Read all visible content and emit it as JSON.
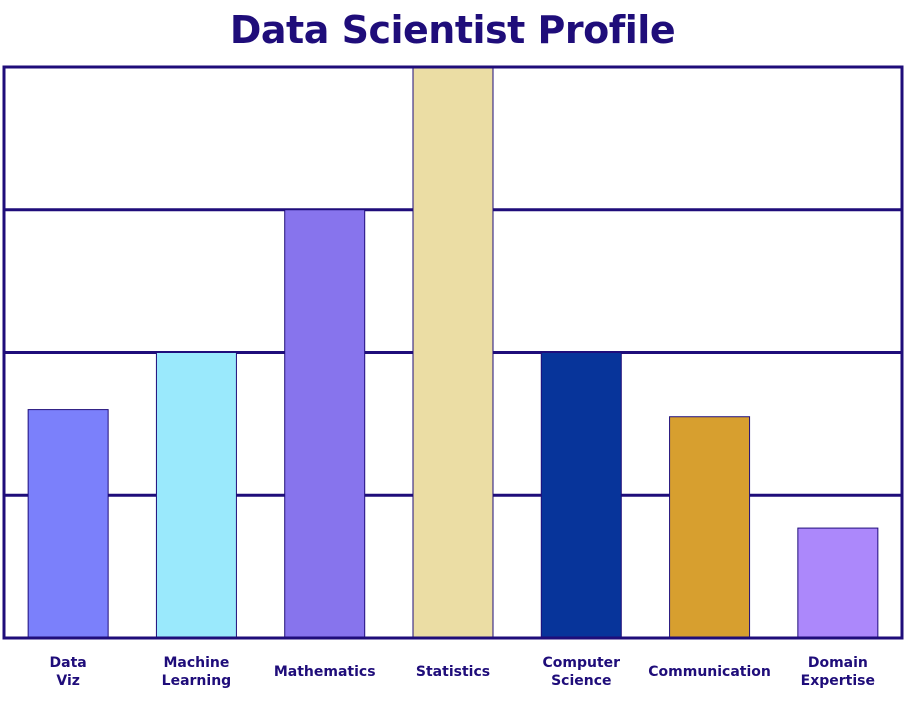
{
  "chart_data": {
    "type": "bar",
    "title": "Data Scientist Profile",
    "xlabel": "",
    "ylabel": "",
    "categories": [
      [
        "Data",
        "Viz"
      ],
      [
        "Machine",
        "Learning"
      ],
      [
        "Mathematics"
      ],
      [
        "Statistics"
      ],
      [
        "Computer",
        "Science"
      ],
      [
        "Communication"
      ],
      [
        "Domain",
        "Expertise"
      ]
    ],
    "values": [
      1.6,
      2.0,
      3.0,
      4.0,
      2.0,
      1.55,
      0.77
    ],
    "ylim": [
      0,
      4
    ],
    "y_tick_labels_shown": false,
    "grid": true,
    "legend": "none",
    "colors": [
      "#7b80fb",
      "#9ae9fc",
      "#8774ed",
      "#ebdda4",
      "#07349a",
      "#d79f2f",
      "#ac88fb"
    ],
    "frame_color": "#1f0d7a",
    "bar_outline": "#1f0d7a"
  }
}
